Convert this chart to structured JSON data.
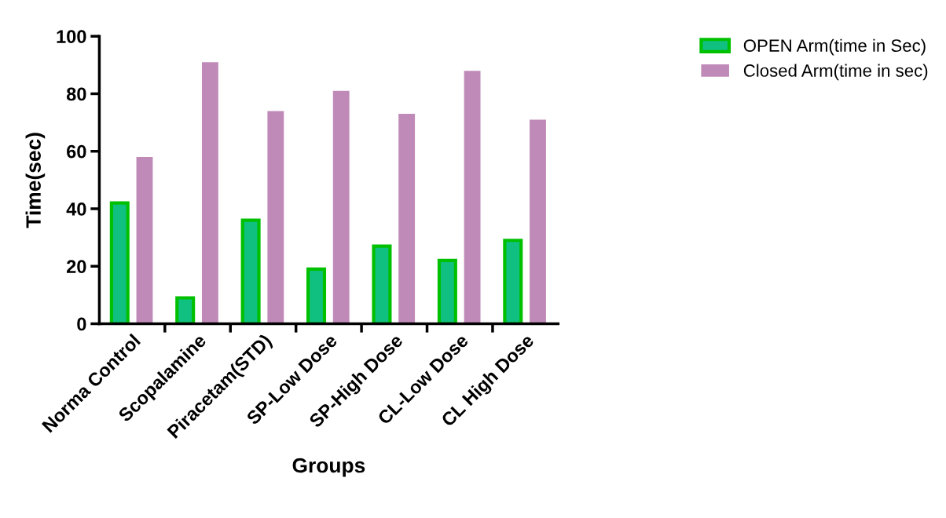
{
  "chart_data": {
    "type": "bar",
    "xlabel": "Groups",
    "ylabel": "Time(sec)",
    "categories": [
      "Norma Control",
      "Scopalamine",
      "Piracetam(STD)",
      "SP-Low Dose",
      "SP-High Dose",
      "CL-Low Dose",
      "CL High Dose"
    ],
    "series": [
      {
        "name": "OPEN Arm(time in Sec)",
        "color": "#00c000",
        "values": [
          42,
          9,
          36,
          19,
          27,
          22,
          29
        ]
      },
      {
        "name": "Closed Arm(time in sec)",
        "color": "#c08ab8",
        "values": [
          58,
          91,
          74,
          81,
          73,
          88,
          71
        ]
      }
    ],
    "ylim": [
      0,
      100
    ],
    "yticks": [
      0,
      20,
      40,
      60,
      80,
      100
    ],
    "grid": false,
    "legend": "top right"
  }
}
